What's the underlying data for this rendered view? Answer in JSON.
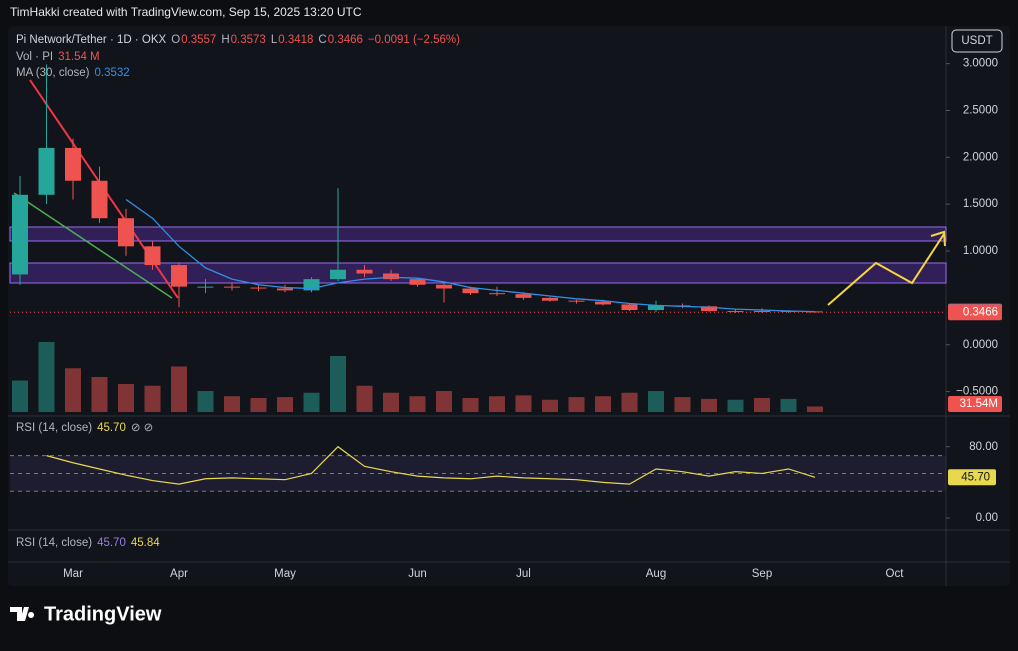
{
  "header": {
    "credit": "TimHakki created with TradingView.com, Sep 15, 2025 13:20 UTC",
    "currency_button": "USDT"
  },
  "chart_data": [
    {
      "type": "candlestick",
      "title": "Pi Network/Tether · 1D · OKX",
      "categories": [
        null,
        null,
        "Mar",
        null,
        null,
        null,
        "Apr",
        null,
        null,
        null,
        "May",
        null,
        null,
        null,
        null,
        "Jun",
        null,
        null,
        null,
        "Jul",
        null,
        null,
        null,
        null,
        "Aug",
        null,
        null,
        null,
        "Sep",
        null,
        null,
        null,
        null,
        "Oct"
      ],
      "open": [
        0.75,
        1.6,
        2.1,
        1.75,
        1.35,
        1.05,
        0.85,
        0.62,
        0.62,
        0.61,
        0.6,
        0.58,
        0.7,
        0.8,
        0.76,
        0.7,
        0.64,
        0.6,
        0.55,
        0.54,
        0.5,
        0.47,
        0.46,
        0.43,
        0.37,
        0.42,
        0.41,
        0.36,
        0.36,
        0.35,
        0.3557,
        null,
        null,
        null
      ],
      "high": [
        1.8,
        2.99,
        2.2,
        1.9,
        1.45,
        1.1,
        0.88,
        0.7,
        0.66,
        0.64,
        0.64,
        0.72,
        1.67,
        0.85,
        0.8,
        0.71,
        0.66,
        0.62,
        0.62,
        0.56,
        0.51,
        0.48,
        0.48,
        0.44,
        0.47,
        0.44,
        0.42,
        0.38,
        0.39,
        0.37,
        0.3573,
        null,
        null,
        null
      ],
      "low": [
        0.64,
        1.5,
        1.55,
        1.3,
        0.95,
        0.8,
        0.4,
        0.55,
        0.58,
        0.57,
        0.56,
        0.56,
        0.68,
        0.72,
        0.68,
        0.62,
        0.45,
        0.53,
        0.52,
        0.48,
        0.46,
        0.44,
        0.42,
        0.36,
        0.35,
        0.39,
        0.35,
        0.34,
        0.34,
        0.34,
        0.3418,
        null,
        null,
        null
      ],
      "close": [
        1.6,
        2.1,
        1.75,
        1.35,
        1.05,
        0.85,
        0.62,
        0.62,
        0.61,
        0.6,
        0.58,
        0.7,
        0.8,
        0.76,
        0.7,
        0.64,
        0.6,
        0.55,
        0.54,
        0.5,
        0.47,
        0.46,
        0.43,
        0.37,
        0.42,
        0.41,
        0.36,
        0.36,
        0.35,
        0.36,
        0.3466,
        null,
        null,
        null
      ],
      "up_color": "#26a69a",
      "down_color": "#ef5350",
      "ylim": [
        -0.75,
        3.38
      ],
      "yticks": [
        {
          "value": 3,
          "label": "3.0000"
        },
        {
          "value": 2.5,
          "label": "2.5000"
        },
        {
          "value": 2,
          "label": "2.0000"
        },
        {
          "value": 1.5,
          "label": "1.5000"
        },
        {
          "value": 1,
          "label": "1.0000"
        },
        {
          "value": 0,
          "label": "0.0000"
        },
        {
          "value": -0.5,
          "label": "−0.5000"
        }
      ],
      "legend": {
        "open_label": "O",
        "high_label": "H",
        "low_label": "L",
        "close_label": "C",
        "change": "−0.0091 (−2.56%)"
      },
      "ma": {
        "name": "MA (30, close)",
        "color": "#2f8fe8",
        "values": [
          null,
          null,
          null,
          null,
          1.55,
          1.35,
          1.05,
          0.82,
          0.7,
          0.64,
          0.61,
          0.6,
          0.66,
          0.7,
          0.72,
          0.71,
          0.67,
          0.61,
          0.58,
          0.55,
          0.52,
          0.49,
          0.47,
          0.44,
          0.42,
          0.41,
          0.4,
          0.38,
          0.37,
          0.36,
          0.3532,
          null,
          null,
          null
        ]
      }
    },
    {
      "type": "bar",
      "name": "Vol · PI",
      "legend_value": "31.54 M",
      "values": [
        180,
        400,
        250,
        200,
        160,
        150,
        260,
        120,
        90,
        80,
        85,
        110,
        320,
        150,
        110,
        90,
        120,
        80,
        90,
        95,
        70,
        85,
        90,
        110,
        120,
        85,
        75,
        70,
        80,
        75,
        31.54,
        null,
        null,
        null
      ],
      "value_labels": [
        null,
        null,
        null,
        null,
        null,
        null,
        null,
        null,
        null,
        null,
        null,
        null,
        null,
        null,
        null,
        null,
        null,
        null,
        null,
        null,
        null,
        null,
        null,
        null,
        null,
        null,
        null,
        null,
        null,
        null,
        "31.54M",
        null,
        null,
        null
      ]
    },
    {
      "type": "line",
      "name": "RSI (14, close)",
      "symbols": "⊘ ⊘",
      "color": "#e8d84e",
      "values": [
        null,
        70,
        62,
        55,
        48,
        42,
        38,
        44,
        45,
        44,
        43,
        50,
        80,
        58,
        52,
        47,
        45,
        44,
        47,
        45,
        44,
        43,
        40,
        38,
        55,
        52,
        47,
        52,
        50,
        55,
        45.7,
        null,
        null,
        null
      ],
      "value_labels": [
        null,
        null,
        null,
        null,
        null,
        null,
        null,
        null,
        null,
        null,
        null,
        null,
        null,
        null,
        null,
        null,
        null,
        null,
        null,
        null,
        null,
        null,
        null,
        null,
        null,
        null,
        null,
        null,
        null,
        null,
        "45.70",
        null,
        null,
        null
      ],
      "ylim": [
        -13.5,
        110
      ],
      "yticks": [
        {
          "value": 80,
          "label": "80.00"
        },
        {
          "value": 0,
          "label": "0.00"
        }
      ],
      "bands": [
        70,
        50,
        30
      ]
    },
    {
      "type": "legend-only",
      "name": "RSI (14, close)",
      "labels": [
        "45.70",
        "45.84"
      ]
    }
  ],
  "footer": {
    "brand": "TradingView"
  }
}
